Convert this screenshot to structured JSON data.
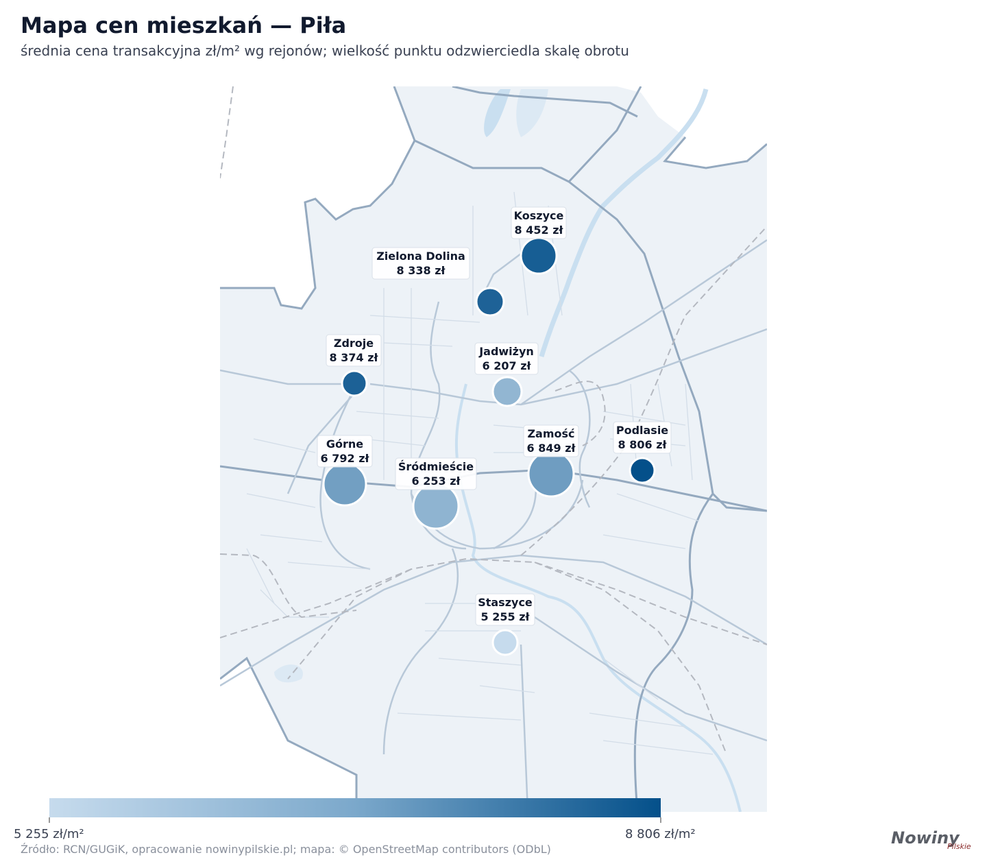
{
  "title": "Mapa cen mieszkań — Piła",
  "subtitle": "średnia cena transakcyjna zł/m² wg rejonów; wielkość punktu odzwierciedla skalę obrotu",
  "colors": {
    "low": "#c6dbed",
    "high": "#04508a",
    "map_bg": "#edf2f7",
    "road": "#94a9bf",
    "water": "#c9dff0"
  },
  "districts": [
    {
      "name": "Koszyce",
      "price": "8 452 zł",
      "value": 8452
    },
    {
      "name": "Zielona Dolina",
      "price": "8 338 zł",
      "value": 8338
    },
    {
      "name": "Zdroje",
      "price": "8 374 zł",
      "value": 8374
    },
    {
      "name": "Jadwiżyn",
      "price": "6 207 zł",
      "value": 6207
    },
    {
      "name": "Górne",
      "price": "6 792 zł",
      "value": 6792
    },
    {
      "name": "Śródmieście",
      "price": "6 253 zł",
      "value": 6253
    },
    {
      "name": "Zamość",
      "price": "6 849 zł",
      "value": 6849
    },
    {
      "name": "Podlasie",
      "price": "8 806 zł",
      "value": 8806
    },
    {
      "name": "Staszyce",
      "price": "5 255 zł",
      "value": 5255
    }
  ],
  "legend": {
    "min_label": "5 255 zł/m²",
    "max_label": "8 806 zł/m²"
  },
  "source": "Źródło: RCN/GUGiK, opracowanie nowinypilskie.pl; mapa: © OpenStreetMap contributors (ODbL)",
  "brand": {
    "name": "Nowiny",
    "sub": "Pilskie"
  }
}
